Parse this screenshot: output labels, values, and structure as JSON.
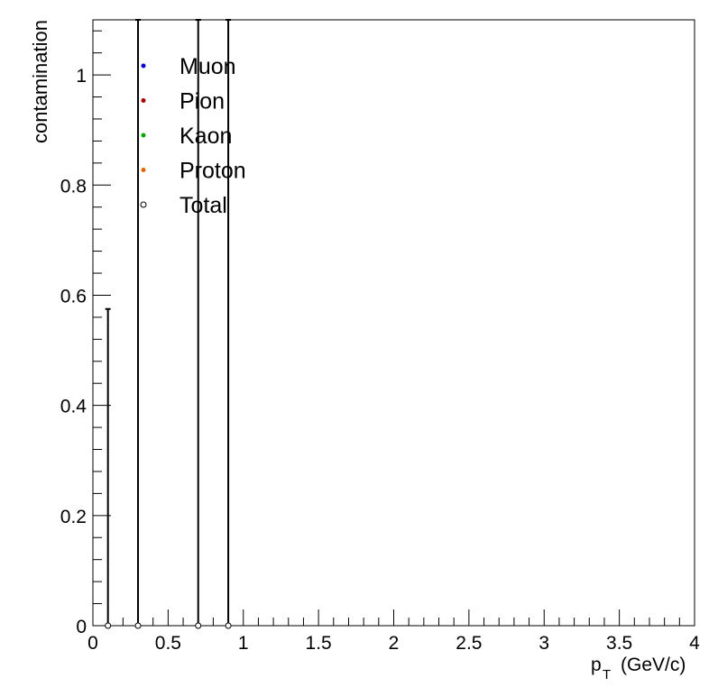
{
  "chart_data": {
    "type": "scatter",
    "xlabel_main": "p",
    "xlabel_sub": "T",
    "xlabel_unit": "(GeV/c)",
    "ylabel": "contamination",
    "xlim": [
      0,
      4
    ],
    "ylim": [
      0,
      1.1
    ],
    "x_ticks": [
      {
        "value": 0,
        "label": "0"
      },
      {
        "value": 0.5,
        "label": "0.5"
      },
      {
        "value": 1,
        "label": "1"
      },
      {
        "value": 1.5,
        "label": "1.5"
      },
      {
        "value": 2,
        "label": "2"
      },
      {
        "value": 2.5,
        "label": "2.5"
      },
      {
        "value": 3,
        "label": "3"
      },
      {
        "value": 3.5,
        "label": "3.5"
      },
      {
        "value": 4,
        "label": "4"
      }
    ],
    "y_ticks": [
      {
        "value": 0,
        "label": "0"
      },
      {
        "value": 0.2,
        "label": "0.2"
      },
      {
        "value": 0.4,
        "label": "0.4"
      },
      {
        "value": 0.6,
        "label": "0.6"
      },
      {
        "value": 0.8,
        "label": "0.8"
      },
      {
        "value": 1,
        "label": "1"
      }
    ],
    "grid": false,
    "legend_position": "top-left",
    "legend": [
      {
        "name": "Muon",
        "color": "#0000cc",
        "marker": "filled"
      },
      {
        "name": "Pion",
        "color": "#aa0000",
        "marker": "filled"
      },
      {
        "name": "Kaon",
        "color": "#00aa00",
        "marker": "filled"
      },
      {
        "name": "Proton",
        "color": "#dd6600",
        "marker": "filled"
      },
      {
        "name": "Total",
        "color": "#000000",
        "marker": "open"
      }
    ],
    "series": [
      {
        "name": "Total",
        "points": [
          {
            "x": 0.1,
            "y": 0,
            "err_up": 0.575
          },
          {
            "x": 0.3,
            "y": 0,
            "err_up": 1.1
          },
          {
            "x": 0.7,
            "y": 0,
            "err_up": 1.1
          },
          {
            "x": 0.9,
            "y": 0,
            "err_up": 1.1
          }
        ]
      }
    ]
  }
}
